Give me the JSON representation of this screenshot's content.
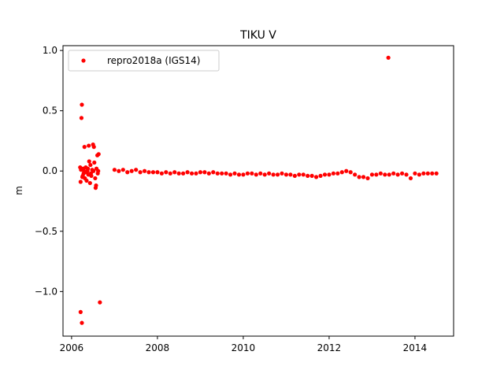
{
  "chart_data": {
    "type": "scatter",
    "title": "TIKU V",
    "xlabel": "",
    "ylabel": "m",
    "xlim": [
      2005.8,
      2014.9
    ],
    "ylim": [
      -1.37,
      1.04
    ],
    "xticks": [
      2006,
      2008,
      2010,
      2012,
      2014
    ],
    "xtick_labels": [
      "2006",
      "2008",
      "2010",
      "2012",
      "2014"
    ],
    "yticks": [
      -1.0,
      -0.5,
      0.0,
      0.5,
      1.0
    ],
    "ytick_labels": [
      "−1.0",
      "−0.5",
      "0.0",
      "0.5",
      "1.0"
    ],
    "grid": false,
    "legend": {
      "position": "top-left"
    },
    "series": [
      {
        "name": "repro2018a (IGS14)",
        "color": "#ff0000",
        "marker": "circle",
        "points": [
          [
            2006.2,
            0.03
          ],
          [
            2006.21,
            -0.09
          ],
          [
            2006.22,
            0.01
          ],
          [
            2006.23,
            0.44
          ],
          [
            2006.24,
            0.55
          ],
          [
            2006.25,
            -0.05
          ],
          [
            2006.27,
            0.02
          ],
          [
            2006.28,
            -0.02
          ],
          [
            2006.3,
            0.2
          ],
          [
            2006.31,
            -0.06
          ],
          [
            2006.33,
            0.03
          ],
          [
            2006.35,
            -0.08
          ],
          [
            2006.37,
            0.0
          ],
          [
            2006.39,
            -0.03
          ],
          [
            2006.4,
            0.21
          ],
          [
            2006.41,
            0.08
          ],
          [
            2006.43,
            -0.1
          ],
          [
            2006.44,
            0.05
          ],
          [
            2006.46,
            -0.04
          ],
          [
            2006.48,
            0.01
          ],
          [
            2006.5,
            0.22
          ],
          [
            2006.52,
            0.2
          ],
          [
            2006.53,
            0.07
          ],
          [
            2006.55,
            -0.06
          ],
          [
            2006.56,
            -0.14
          ],
          [
            2006.58,
            0.02
          ],
          [
            2006.6,
            0.13
          ],
          [
            2006.61,
            -0.02
          ],
          [
            2006.63,
            0.14
          ],
          [
            2006.66,
            -1.09
          ],
          [
            2006.21,
            -1.17
          ],
          [
            2006.24,
            -1.26
          ],
          [
            2006.26,
            -0.04
          ],
          [
            2006.29,
            0.0
          ],
          [
            2006.34,
            -0.01
          ],
          [
            2006.38,
            0.02
          ],
          [
            2006.45,
            -0.02
          ],
          [
            2006.51,
            0.0
          ],
          [
            2006.57,
            -0.12
          ],
          [
            2006.62,
            0.0
          ],
          [
            2007.0,
            0.01
          ],
          [
            2007.1,
            0.0
          ],
          [
            2007.2,
            0.01
          ],
          [
            2007.3,
            -0.01
          ],
          [
            2007.4,
            0.0
          ],
          [
            2007.5,
            0.01
          ],
          [
            2007.6,
            -0.01
          ],
          [
            2007.7,
            0.0
          ],
          [
            2007.8,
            -0.01
          ],
          [
            2007.9,
            -0.01
          ],
          [
            2008.0,
            -0.01
          ],
          [
            2008.1,
            -0.02
          ],
          [
            2008.2,
            -0.01
          ],
          [
            2008.3,
            -0.02
          ],
          [
            2008.4,
            -0.01
          ],
          [
            2008.5,
            -0.02
          ],
          [
            2008.6,
            -0.02
          ],
          [
            2008.7,
            -0.01
          ],
          [
            2008.8,
            -0.02
          ],
          [
            2008.9,
            -0.02
          ],
          [
            2009.0,
            -0.01
          ],
          [
            2009.1,
            -0.01
          ],
          [
            2009.2,
            -0.02
          ],
          [
            2009.3,
            -0.01
          ],
          [
            2009.4,
            -0.02
          ],
          [
            2009.5,
            -0.02
          ],
          [
            2009.6,
            -0.02
          ],
          [
            2009.7,
            -0.03
          ],
          [
            2009.8,
            -0.02
          ],
          [
            2009.9,
            -0.03
          ],
          [
            2010.0,
            -0.03
          ],
          [
            2010.1,
            -0.02
          ],
          [
            2010.2,
            -0.02
          ],
          [
            2010.3,
            -0.03
          ],
          [
            2010.4,
            -0.02
          ],
          [
            2010.5,
            -0.03
          ],
          [
            2010.6,
            -0.02
          ],
          [
            2010.7,
            -0.03
          ],
          [
            2010.8,
            -0.03
          ],
          [
            2010.9,
            -0.02
          ],
          [
            2011.0,
            -0.03
          ],
          [
            2011.1,
            -0.03
          ],
          [
            2011.2,
            -0.04
          ],
          [
            2011.3,
            -0.03
          ],
          [
            2011.4,
            -0.03
          ],
          [
            2011.5,
            -0.04
          ],
          [
            2011.6,
            -0.04
          ],
          [
            2011.7,
            -0.05
          ],
          [
            2011.8,
            -0.04
          ],
          [
            2011.9,
            -0.03
          ],
          [
            2012.0,
            -0.03
          ],
          [
            2012.1,
            -0.02
          ],
          [
            2012.2,
            -0.02
          ],
          [
            2012.3,
            -0.01
          ],
          [
            2012.4,
            0.0
          ],
          [
            2012.5,
            -0.01
          ],
          [
            2012.6,
            -0.03
          ],
          [
            2012.7,
            -0.05
          ],
          [
            2012.8,
            -0.05
          ],
          [
            2012.9,
            -0.06
          ],
          [
            2013.0,
            -0.03
          ],
          [
            2013.1,
            -0.03
          ],
          [
            2013.2,
            -0.02
          ],
          [
            2013.3,
            -0.03
          ],
          [
            2013.4,
            -0.03
          ],
          [
            2013.5,
            -0.02
          ],
          [
            2013.6,
            -0.03
          ],
          [
            2013.7,
            -0.02
          ],
          [
            2013.8,
            -0.03
          ],
          [
            2013.9,
            -0.06
          ],
          [
            2014.0,
            -0.02
          ],
          [
            2014.1,
            -0.03
          ],
          [
            2014.2,
            -0.02
          ],
          [
            2014.3,
            -0.02
          ],
          [
            2014.4,
            -0.02
          ],
          [
            2014.5,
            -0.02
          ],
          [
            2013.38,
            0.94
          ]
        ]
      }
    ]
  }
}
